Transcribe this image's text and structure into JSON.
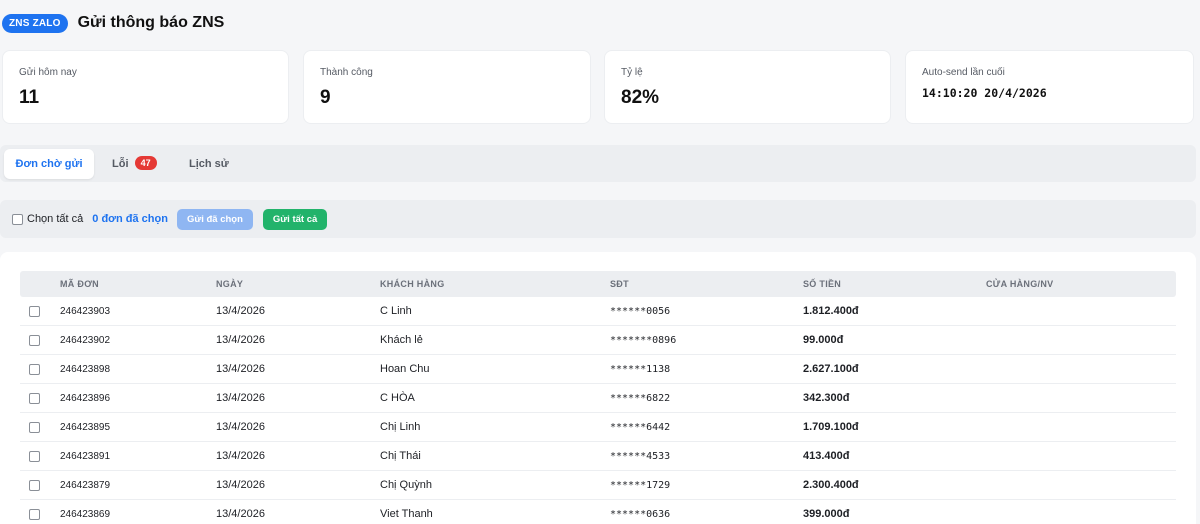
{
  "header": {
    "badge": "ZNS ZALO",
    "title": "Gửi thông báo ZNS"
  },
  "stats": [
    {
      "label": "Gửi hôm nay",
      "value": "11"
    },
    {
      "label": "Thành công",
      "value": "9"
    },
    {
      "label": "Tỷ lệ",
      "value": "82%"
    },
    {
      "label": "Auto-send lần cuối",
      "value": "14:10:20 20/4/2026"
    }
  ],
  "tabs": [
    {
      "label": "Đơn chờ gửi",
      "active": true
    },
    {
      "label": "Lỗi",
      "count": "47"
    },
    {
      "label": "Lịch sử"
    }
  ],
  "actions": {
    "select_all": "Chọn tất cả",
    "selected_count": "0 đơn đã chọn",
    "send_selected": "Gửi đã chọn",
    "send_all": "Gửi tất cả"
  },
  "table": {
    "columns": [
      "MÃ ĐƠN",
      "NGÀY",
      "KHÁCH HÀNG",
      "SĐT",
      "SỐ TIỀN",
      "CỬA HÀNG/NV"
    ],
    "rows": [
      {
        "id": "246423903",
        "date": "13/4/2026",
        "customer": "C Linh",
        "phone": "******0056",
        "amount": "1.812.400đ",
        "store": ""
      },
      {
        "id": "246423902",
        "date": "13/4/2026",
        "customer": "Khách lẻ",
        "phone": "*******0896",
        "amount": "99.000đ",
        "store": ""
      },
      {
        "id": "246423898",
        "date": "13/4/2026",
        "customer": "Hoan Chu",
        "phone": "******1138",
        "amount": "2.627.100đ",
        "store": ""
      },
      {
        "id": "246423896",
        "date": "13/4/2026",
        "customer": "C HÒA",
        "phone": "******6822",
        "amount": "342.300đ",
        "store": ""
      },
      {
        "id": "246423895",
        "date": "13/4/2026",
        "customer": "Chị Linh",
        "phone": "******6442",
        "amount": "1.709.100đ",
        "store": ""
      },
      {
        "id": "246423891",
        "date": "13/4/2026",
        "customer": "Chị Thái",
        "phone": "******4533",
        "amount": "413.400đ",
        "store": ""
      },
      {
        "id": "246423879",
        "date": "13/4/2026",
        "customer": "Chị Quỳnh",
        "phone": "******1729",
        "amount": "2.300.400đ",
        "store": ""
      },
      {
        "id": "246423869",
        "date": "13/4/2026",
        "customer": "Viet Thanh",
        "phone": "******0636",
        "amount": "399.000đ",
        "store": ""
      }
    ]
  },
  "colors": {
    "accent": "#1e73f0",
    "success": "#22b36b",
    "danger": "#e53935",
    "disabled_accent": "#8fb6f2"
  }
}
